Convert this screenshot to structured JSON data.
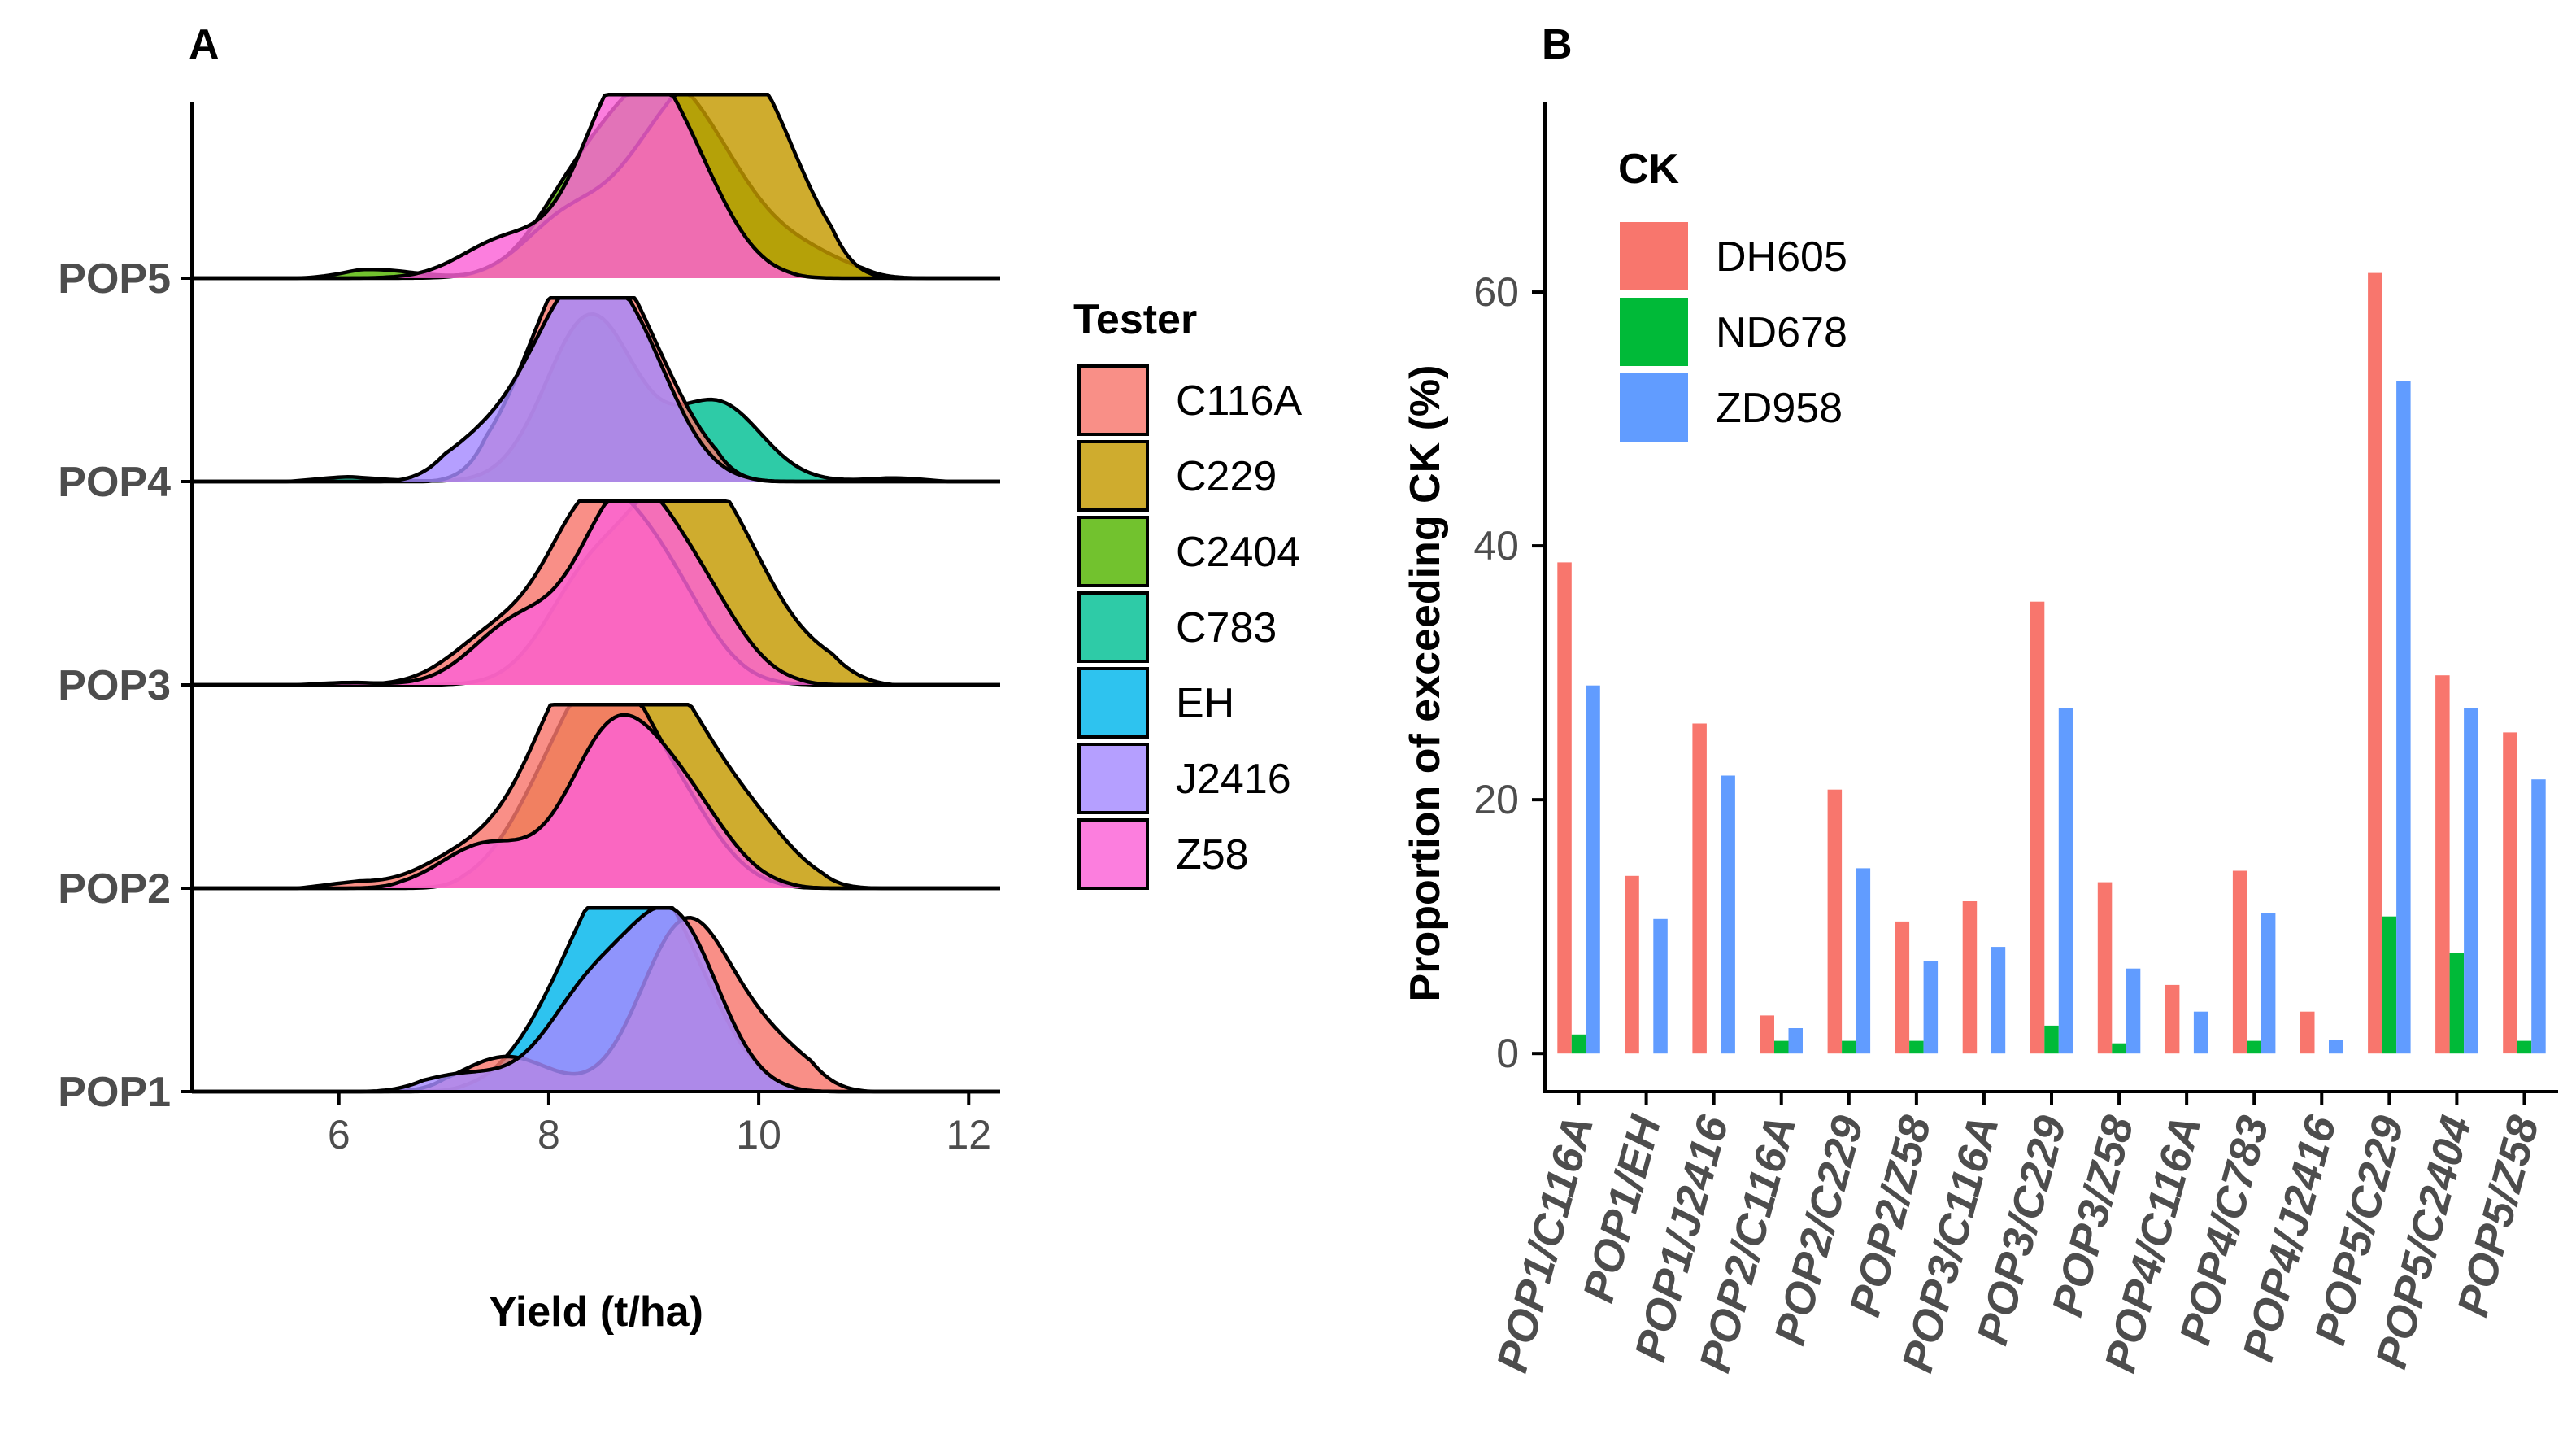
{
  "chart_data": [
    {
      "panel": "A",
      "type": "area",
      "subtype": "ridgeline-density",
      "xlabel": "Yield (t/ha)",
      "xlim": [
        4.6,
        12.3
      ],
      "xticks": [
        6,
        8,
        10,
        12
      ],
      "categories": [
        "POP1",
        "POP2",
        "POP3",
        "POP4",
        "POP5"
      ],
      "legend": {
        "title": "Tester",
        "placement": "right",
        "entries": [
          {
            "name": "C116A",
            "color": "#F8766D"
          },
          {
            "name": "C229",
            "color": "#C49A00"
          },
          {
            "name": "C2404",
            "color": "#53B400"
          },
          {
            "name": "C783",
            "color": "#00C094"
          },
          {
            "name": "EH",
            "color": "#00B6EB"
          },
          {
            "name": "J2416",
            "color": "#A58AFF"
          },
          {
            "name": "Z58",
            "color": "#FB61D7"
          }
        ]
      },
      "series": [
        {
          "pop": "POP1",
          "tester": "EH",
          "range": [
            6.6,
            10.8
          ],
          "peaks": [
            [
              8.1,
              0.35
            ],
            [
              8.7,
              1.0
            ],
            [
              9.3,
              0.55
            ]
          ]
        },
        {
          "pop": "POP1",
          "tester": "C116A",
          "range": [
            6.4,
            11.1
          ],
          "peaks": [
            [
              7.6,
              0.2
            ],
            [
              9.3,
              0.95
            ],
            [
              10.1,
              0.25
            ]
          ]
        },
        {
          "pop": "POP1",
          "tester": "J2416",
          "range": [
            6.2,
            10.9
          ],
          "peaks": [
            [
              7.2,
              0.1
            ],
            [
              8.4,
              0.55
            ],
            [
              9.2,
              0.95
            ]
          ]
        },
        {
          "pop": "POP2",
          "tester": "C229",
          "range": [
            6.6,
            11.2
          ],
          "peaks": [
            [
              8.0,
              0.45
            ],
            [
              8.6,
              0.95
            ],
            [
              9.2,
              0.75
            ],
            [
              9.9,
              0.35
            ]
          ]
        },
        {
          "pop": "POP2",
          "tester": "C116A",
          "range": [
            5.6,
            10.8
          ],
          "peaks": [
            [
              5.9,
              0.04
            ],
            [
              7.2,
              0.18
            ],
            [
              8.0,
              0.5
            ],
            [
              8.5,
              1.0
            ],
            [
              9.2,
              0.45
            ]
          ]
        },
        {
          "pop": "POP2",
          "tester": "Z58",
          "range": [
            6.0,
            10.9
          ],
          "peaks": [
            [
              7.4,
              0.25
            ],
            [
              8.6,
              0.85
            ],
            [
              9.3,
              0.45
            ]
          ]
        },
        {
          "pop": "POP3",
          "tester": "C229",
          "range": [
            6.5,
            11.3
          ],
          "peaks": [
            [
              8.4,
              0.6
            ],
            [
              9.2,
              0.95
            ],
            [
              9.8,
              0.6
            ],
            [
              10.6,
              0.12
            ]
          ]
        },
        {
          "pop": "POP3",
          "tester": "C116A",
          "range": [
            5.8,
            11.0
          ],
          "peaks": [
            [
              7.5,
              0.28
            ],
            [
              8.4,
              0.95
            ],
            [
              9.1,
              0.55
            ]
          ]
        },
        {
          "pop": "POP3",
          "tester": "Z58",
          "range": [
            5.6,
            11.0
          ],
          "peaks": [
            [
              5.8,
              0.02
            ],
            [
              7.7,
              0.35
            ],
            [
              8.7,
              1.0
            ],
            [
              9.4,
              0.5
            ]
          ]
        },
        {
          "pop": "POP4",
          "tester": "C783",
          "range": [
            5.5,
            11.8
          ],
          "peaks": [
            [
              5.9,
              0.03
            ],
            [
              8.4,
              0.95
            ],
            [
              9.6,
              0.45
            ],
            [
              11.6,
              0.03
            ]
          ]
        },
        {
          "pop": "POP4",
          "tester": "C116A",
          "range": [
            6.8,
            10.2
          ],
          "peaks": [
            [
              7.9,
              0.4
            ],
            [
              8.4,
              1.0
            ],
            [
              9.0,
              0.45
            ]
          ]
        },
        {
          "pop": "POP4",
          "tester": "J2416",
          "range": [
            6.4,
            10.5
          ],
          "peaks": [
            [
              7.4,
              0.22
            ],
            [
              8.2,
              0.85
            ],
            [
              8.8,
              0.7
            ]
          ]
        },
        {
          "pop": "POP5",
          "tester": "C2404",
          "range": [
            5.6,
            11.6
          ],
          "peaks": [
            [
              6.3,
              0.05
            ],
            [
              8.3,
              0.5
            ],
            [
              9.0,
              0.85
            ],
            [
              9.6,
              0.5
            ],
            [
              10.4,
              0.15
            ]
          ]
        },
        {
          "pop": "POP5",
          "tester": "C229",
          "range": [
            6.0,
            11.3
          ],
          "peaks": [
            [
              8.2,
              0.35
            ],
            [
              9.1,
              0.7
            ],
            [
              9.8,
              0.95
            ],
            [
              10.3,
              0.3
            ]
          ]
        },
        {
          "pop": "POP5",
          "tester": "Z58",
          "range": [
            5.8,
            10.9
          ],
          "peaks": [
            [
              7.6,
              0.22
            ],
            [
              8.7,
              1.0
            ],
            [
              9.3,
              0.55
            ]
          ]
        }
      ]
    },
    {
      "panel": "B",
      "type": "bar",
      "ylabel": "Proportion of exceeding CK (%)",
      "ylim": [
        -3,
        75
      ],
      "yticks": [
        0,
        20,
        40,
        60
      ],
      "categories": [
        "POP1/C116A",
        "POP1/EH",
        "POP1/J2416",
        "POP2/C116A",
        "POP2/C229",
        "POP2/Z58",
        "POP3/C116A",
        "POP3/C229",
        "POP3/Z58",
        "POP4/C116A",
        "POP4/C783",
        "POP4/J2416",
        "POP5/C229",
        "POP5/C2404",
        "POP5/Z58"
      ],
      "legend": {
        "title": "CK",
        "placement": "top-left"
      },
      "series": [
        {
          "name": "DH605",
          "color": "#F8766D",
          "values": [
            38.7,
            14.0,
            26.0,
            3.0,
            20.8,
            10.4,
            12.0,
            35.6,
            13.5,
            5.4,
            14.4,
            3.3,
            61.5,
            29.8,
            25.3
          ]
        },
        {
          "name": "ND678",
          "color": "#00BA38",
          "values": [
            1.5,
            0,
            0,
            1.0,
            1.0,
            1.0,
            0,
            2.2,
            0.8,
            0,
            1.0,
            0,
            10.8,
            7.9,
            1.0
          ]
        },
        {
          "name": "ZD958",
          "color": "#619CFF",
          "values": [
            29.0,
            10.6,
            21.9,
            2.0,
            14.6,
            7.3,
            8.4,
            27.2,
            6.7,
            3.3,
            11.1,
            1.1,
            53.0,
            27.2,
            21.6
          ]
        }
      ]
    }
  ]
}
